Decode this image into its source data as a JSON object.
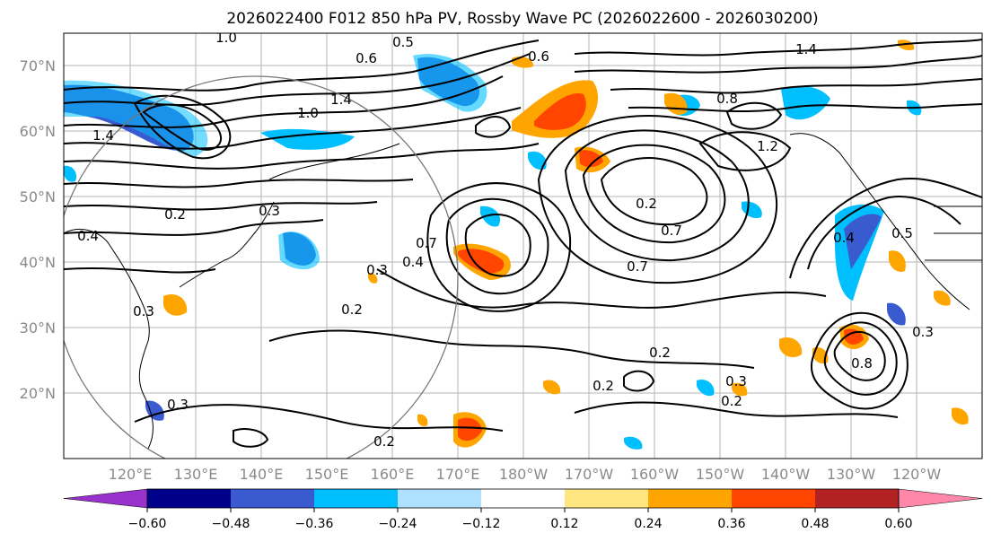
{
  "title": "2026022400 F012 850 hPa PV, Rossby Wave PC (2026022600 - 2026030200)",
  "map": {
    "lon_labels": [
      "120°E",
      "130°E",
      "140°E",
      "150°E",
      "160°E",
      "170°E",
      "180°W",
      "170°W",
      "160°W",
      "150°W",
      "140°W",
      "130°W",
      "120°W"
    ],
    "lat_labels": [
      "70°N",
      "60°N",
      "50°N",
      "40°N",
      "30°N",
      "20°N"
    ],
    "contour_labels": [
      "1.0",
      "0.5",
      "0.6",
      "1.4",
      "1.0",
      "1.4",
      "1.2",
      "0.8",
      "0.2",
      "0.3",
      "0.4",
      "0.7",
      "0.4",
      "0.3",
      "0.2",
      "0.3",
      "0.7",
      "0.2",
      "0.2",
      "0.3",
      "0.2",
      "0.2",
      "0.8",
      "0.5",
      "0.3",
      "0.4",
      "0.7",
      "0.3",
      "1.4",
      "0.2",
      "0.6"
    ]
  },
  "colorbar": {
    "ticks": [
      "−0.60",
      "−0.48",
      "−0.36",
      "−0.24",
      "−0.12",
      "0.12",
      "0.24",
      "0.36",
      "0.48",
      "0.60"
    ],
    "colors": [
      "#9932cc",
      "#00008b",
      "#3a5bd0",
      "#00bfff",
      "#b0e0ff",
      "#ffffff",
      "#ffe680",
      "#ffa500",
      "#ff4500",
      "#b22222",
      "#ff88aa"
    ]
  }
}
